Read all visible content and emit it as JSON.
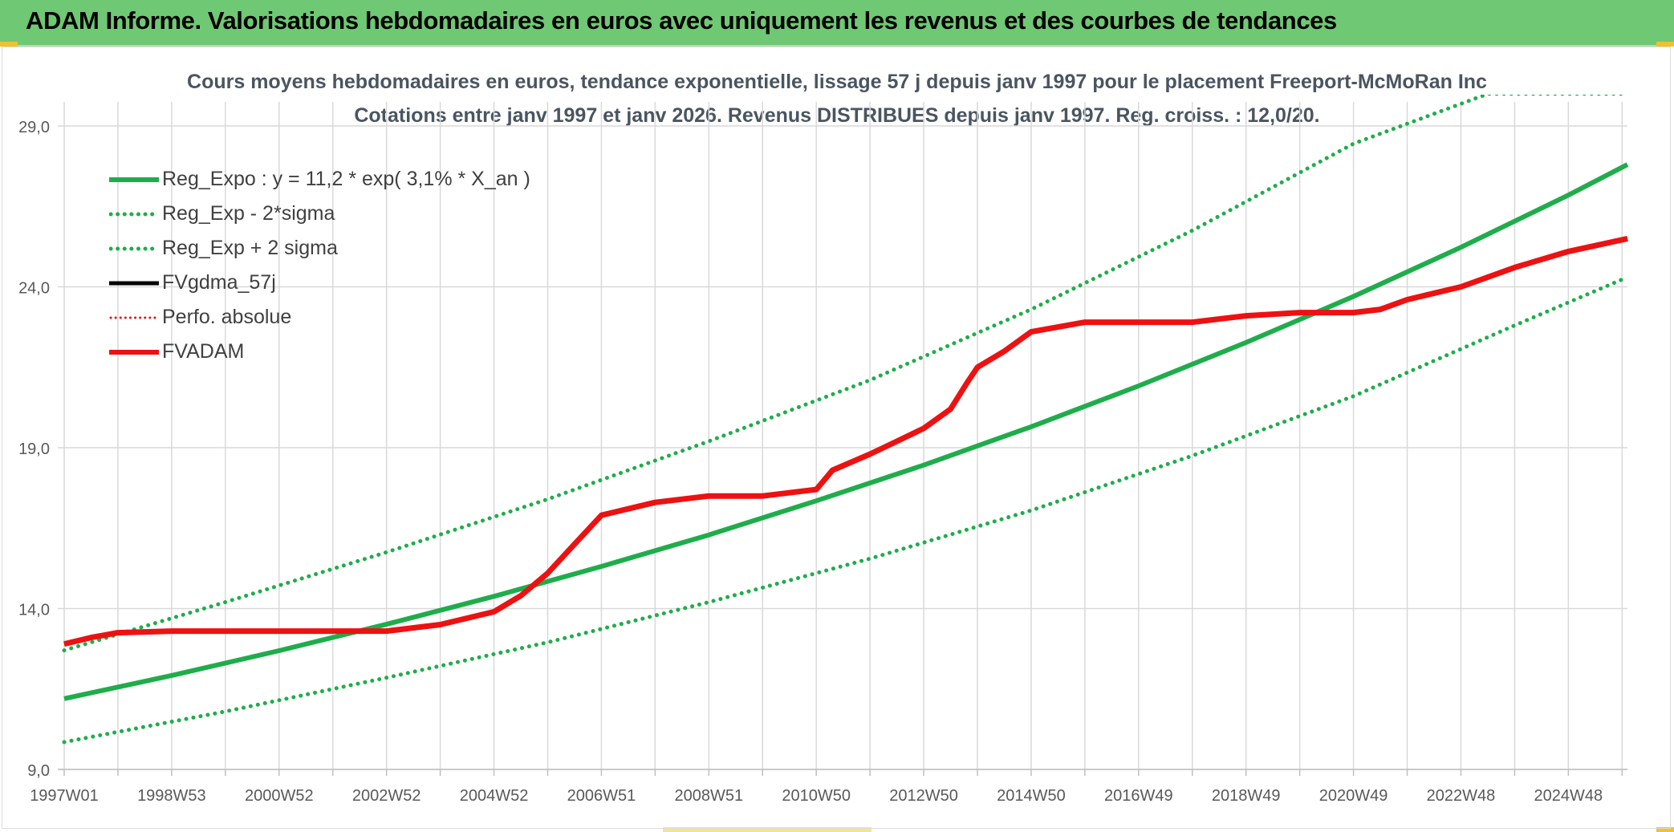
{
  "header": {
    "title": "ADAM Informe. Valorisations hebdomadaires en euros avec uniquement les revenus et des courbes de tendances"
  },
  "colors": {
    "header_bg": "#6fc873",
    "trend": "#1fad4b",
    "band": "#1fad4b",
    "fvadam": "#ee1111",
    "fvgdma": "#000000",
    "perfo": "#ee1111",
    "grid": "#d9d9d9",
    "axis_text": "#595959"
  },
  "chart_data": {
    "type": "line",
    "title": "Cours moyens hebdomadaires en euros, tendance exponentielle, lissage 57 j depuis janv 1997 pour le placement Freeport-McMoRan Inc",
    "subtitle": "Cotations entre janv 1997 et janv 2026. Revenus DISTRIBUES depuis janv 1997. Reg. croiss. : 12,0/20.",
    "xlabel": "",
    "ylabel": "",
    "x_range": [
      1997.0,
      2026.1
    ],
    "ylim": [
      9.0,
      29.0
    ],
    "y_ticks": [
      9.0,
      14.0,
      19.0,
      24.0,
      29.0
    ],
    "y_tick_labels": [
      "9,0",
      "14,0",
      "19,0",
      "24,0",
      "29,0"
    ],
    "x_tick_labels": [
      {
        "label": "1997W01",
        "x": 1997.0
      },
      {
        "label": "1998W53",
        "x": 1999.0
      },
      {
        "label": "2000W52",
        "x": 2001.0
      },
      {
        "label": "2002W52",
        "x": 2003.0
      },
      {
        "label": "2004W52",
        "x": 2005.0
      },
      {
        "label": "2006W51",
        "x": 2007.0
      },
      {
        "label": "2008W51",
        "x": 2009.0
      },
      {
        "label": "2010W50",
        "x": 2011.0
      },
      {
        "label": "2012W50",
        "x": 2013.0
      },
      {
        "label": "2014W50",
        "x": 2015.0
      },
      {
        "label": "2016W49",
        "x": 2017.0
      },
      {
        "label": "2018W49",
        "x": 2019.0
      },
      {
        "label": "2020W49",
        "x": 2021.0
      },
      {
        "label": "2022W48",
        "x": 2023.0
      },
      {
        "label": "2024W48",
        "x": 2025.0
      }
    ],
    "grid_years": [
      1997,
      1998,
      1999,
      2000,
      2001,
      2002,
      2003,
      2004,
      2005,
      2006,
      2007,
      2008,
      2009,
      2010,
      2011,
      2012,
      2013,
      2014,
      2015,
      2016,
      2017,
      2018,
      2019,
      2020,
      2021,
      2022,
      2023,
      2024,
      2025,
      2026
    ],
    "series": [
      {
        "name": "Reg_Expo : y = 11,2 * exp( 3,1% *  X_an )",
        "style": "solid-green",
        "x": [
          1997.0,
          1999.0,
          2001.0,
          2003.0,
          2005.0,
          2007.0,
          2009.0,
          2011.0,
          2013.0,
          2015.0,
          2017.0,
          2019.0,
          2021.0,
          2023.0,
          2025.0,
          2026.1
        ],
        "y": [
          11.2,
          11.92,
          12.69,
          13.51,
          14.38,
          15.31,
          16.29,
          17.35,
          18.46,
          19.65,
          20.92,
          22.27,
          23.7,
          25.23,
          26.85,
          27.8
        ]
      },
      {
        "name": "Reg_Exp - 2*sigma",
        "style": "dotted-green",
        "x": [
          1997.0,
          2000.0,
          2003.0,
          2006.0,
          2009.0,
          2012.0,
          2015.0,
          2018.0,
          2021.0,
          2024.0,
          2026.1
        ],
        "y": [
          9.85,
          10.8,
          11.85,
          12.95,
          14.2,
          15.55,
          17.05,
          18.75,
          20.6,
          22.8,
          24.3
        ]
      },
      {
        "name": "Reg_Exp + 2 sigma",
        "style": "dotted-green",
        "x": [
          1997.0,
          2000.0,
          2003.0,
          2006.0,
          2009.0,
          2012.0,
          2015.0,
          2018.0,
          2021.0,
          2023.5,
          2024.5,
          2026.1
        ],
        "y": [
          12.7,
          14.2,
          15.75,
          17.4,
          19.2,
          21.1,
          23.3,
          25.75,
          28.45,
          30.0,
          30.0,
          30.0
        ]
      },
      {
        "name": "FVgdma_57j",
        "style": "solid-black",
        "x": [
          1997.0,
          1997.5,
          1998.0,
          1999.0,
          2000.0,
          2002.0,
          2003.0,
          2004.0,
          2005.0,
          2005.5,
          2006.0,
          2006.5,
          2007.0,
          2007.5,
          2008.0,
          2009.0,
          2010.0,
          2011.0,
          2011.3,
          2012.0,
          2012.5,
          2013.0,
          2013.5,
          2013.8,
          2014.0,
          2014.5,
          2015.0,
          2016.0,
          2017.0,
          2018.0,
          2019.0,
          2020.0,
          2021.0,
          2021.5,
          2022.0,
          2023.0,
          2024.0,
          2025.0,
          2026.1
        ],
        "y": [
          12.9,
          13.1,
          13.25,
          13.3,
          13.3,
          13.3,
          13.3,
          13.5,
          13.9,
          14.4,
          15.1,
          16.0,
          16.9,
          17.1,
          17.3,
          17.5,
          17.5,
          17.7,
          18.3,
          18.8,
          19.2,
          19.6,
          20.2,
          21.0,
          21.5,
          22.0,
          22.6,
          22.9,
          22.9,
          22.9,
          23.1,
          23.2,
          23.2,
          23.3,
          23.6,
          24.0,
          24.6,
          25.1,
          25.5
        ]
      },
      {
        "name": "Perfo. absolue",
        "style": "dotted-red",
        "x": [],
        "y": []
      },
      {
        "name": "FVADAM",
        "style": "solid-red",
        "x": [
          1997.0,
          1997.5,
          1998.0,
          1999.0,
          2000.0,
          2002.0,
          2003.0,
          2004.0,
          2005.0,
          2005.5,
          2006.0,
          2006.5,
          2007.0,
          2007.5,
          2008.0,
          2009.0,
          2010.0,
          2011.0,
          2011.3,
          2012.0,
          2012.5,
          2013.0,
          2013.5,
          2013.8,
          2014.0,
          2014.5,
          2015.0,
          2016.0,
          2017.0,
          2018.0,
          2019.0,
          2020.0,
          2021.0,
          2021.5,
          2022.0,
          2023.0,
          2024.0,
          2025.0,
          2026.1
        ],
        "y": [
          12.9,
          13.1,
          13.25,
          13.3,
          13.3,
          13.3,
          13.3,
          13.5,
          13.9,
          14.4,
          15.1,
          16.0,
          16.9,
          17.1,
          17.3,
          17.5,
          17.5,
          17.7,
          18.3,
          18.8,
          19.2,
          19.6,
          20.2,
          21.0,
          21.5,
          22.0,
          22.6,
          22.9,
          22.9,
          22.9,
          23.1,
          23.2,
          23.2,
          23.3,
          23.6,
          24.0,
          24.6,
          25.1,
          25.5
        ]
      }
    ],
    "legend": {
      "position": "top-left",
      "entries": [
        {
          "label": "Reg_Expo : y = 11,2 * exp( 3,1% *  X_an )",
          "style": "solid-green"
        },
        {
          "label": "Reg_Exp - 2*sigma",
          "style": "dotted-green"
        },
        {
          "label": "Reg_Exp + 2 sigma",
          "style": "dotted-green"
        },
        {
          "label": "FVgdma_57j",
          "style": "solid-black"
        },
        {
          "label": "Perfo. absolue",
          "style": "dotted-red"
        },
        {
          "label": "FVADAM",
          "style": "solid-red"
        }
      ]
    }
  }
}
